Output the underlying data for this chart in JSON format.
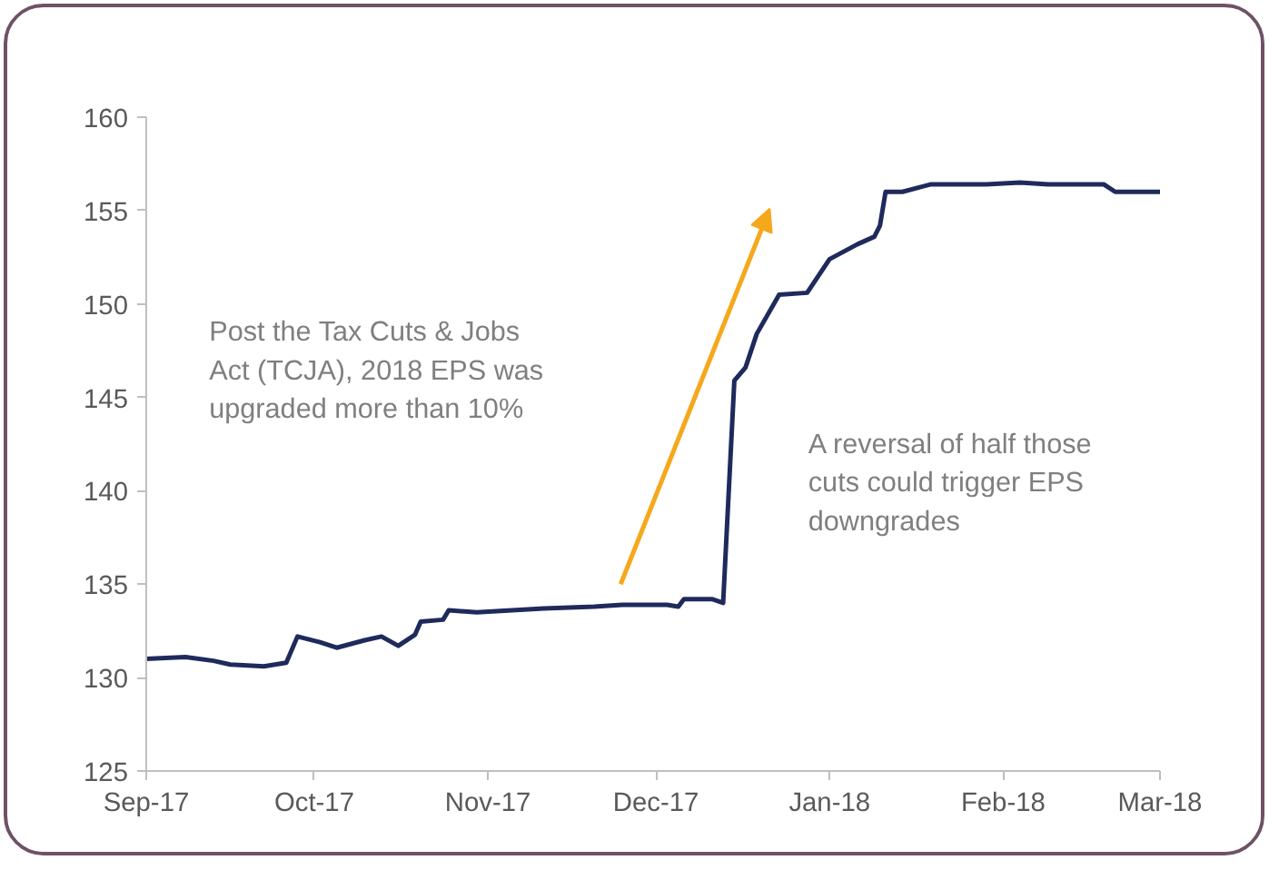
{
  "chart_data": {
    "type": "line",
    "x": [
      "2017-09-01",
      "2017-09-08",
      "2017-09-13",
      "2017-09-16",
      "2017-09-22",
      "2017-09-26",
      "2017-09-28",
      "2017-10-02",
      "2017-10-05",
      "2017-10-10",
      "2017-10-13",
      "2017-10-16",
      "2017-10-19",
      "2017-10-20",
      "2017-10-24",
      "2017-10-25",
      "2017-10-30",
      "2017-11-11",
      "2017-11-20",
      "2017-11-25",
      "2017-12-03",
      "2017-12-05",
      "2017-12-06",
      "2017-12-11",
      "2017-12-13",
      "2017-12-15",
      "2017-12-17",
      "2017-12-19",
      "2017-12-23",
      "2017-12-28",
      "2018-01-01",
      "2018-01-06",
      "2018-01-09",
      "2018-01-10",
      "2018-01-11",
      "2018-01-14",
      "2018-01-19",
      "2018-01-29",
      "2018-02-04",
      "2018-02-09",
      "2018-02-19",
      "2018-02-21",
      "2018-03-01"
    ],
    "series": [
      {
        "color": "#1f2a5c",
        "values": [
          131.0,
          131.1,
          130.9,
          130.7,
          130.6,
          130.8,
          132.2,
          131.9,
          131.6,
          132.0,
          132.2,
          131.7,
          132.3,
          133.0,
          133.1,
          133.6,
          133.5,
          133.7,
          133.8,
          133.9,
          133.9,
          133.8,
          134.2,
          134.2,
          134.0,
          145.9,
          146.6,
          148.4,
          150.5,
          150.6,
          152.4,
          153.2,
          153.6,
          154.2,
          156.0,
          156.0,
          156.4,
          156.4,
          156.5,
          156.4,
          156.4,
          156.0,
          156.0
        ]
      }
    ],
    "xlim": [
      "2017-09-01",
      "2018-03-01"
    ],
    "xticks": [
      {
        "value": "2017-09-01",
        "label": "Sep-17"
      },
      {
        "value": "2017-10-01",
        "label": "Oct-17"
      },
      {
        "value": "2017-11-01",
        "label": "Nov-17"
      },
      {
        "value": "2017-12-01",
        "label": "Dec-17"
      },
      {
        "value": "2018-01-01",
        "label": "Jan-18"
      },
      {
        "value": "2018-02-01",
        "label": "Feb-18"
      },
      {
        "value": "2018-03-01",
        "label": "Mar-18"
      }
    ],
    "ylim": [
      125,
      160
    ],
    "yticks": [
      125,
      130,
      135,
      140,
      145,
      150,
      155,
      160
    ],
    "grid": false,
    "marker": "none",
    "line_style": "solid",
    "annotations": [
      "Post the Tax Cuts & Jobs\nAct (TCJA), 2018 EPS was\nupgraded more than 10%",
      "A reversal of half those\ncuts could trigger EPS\ndowngrades"
    ]
  }
}
